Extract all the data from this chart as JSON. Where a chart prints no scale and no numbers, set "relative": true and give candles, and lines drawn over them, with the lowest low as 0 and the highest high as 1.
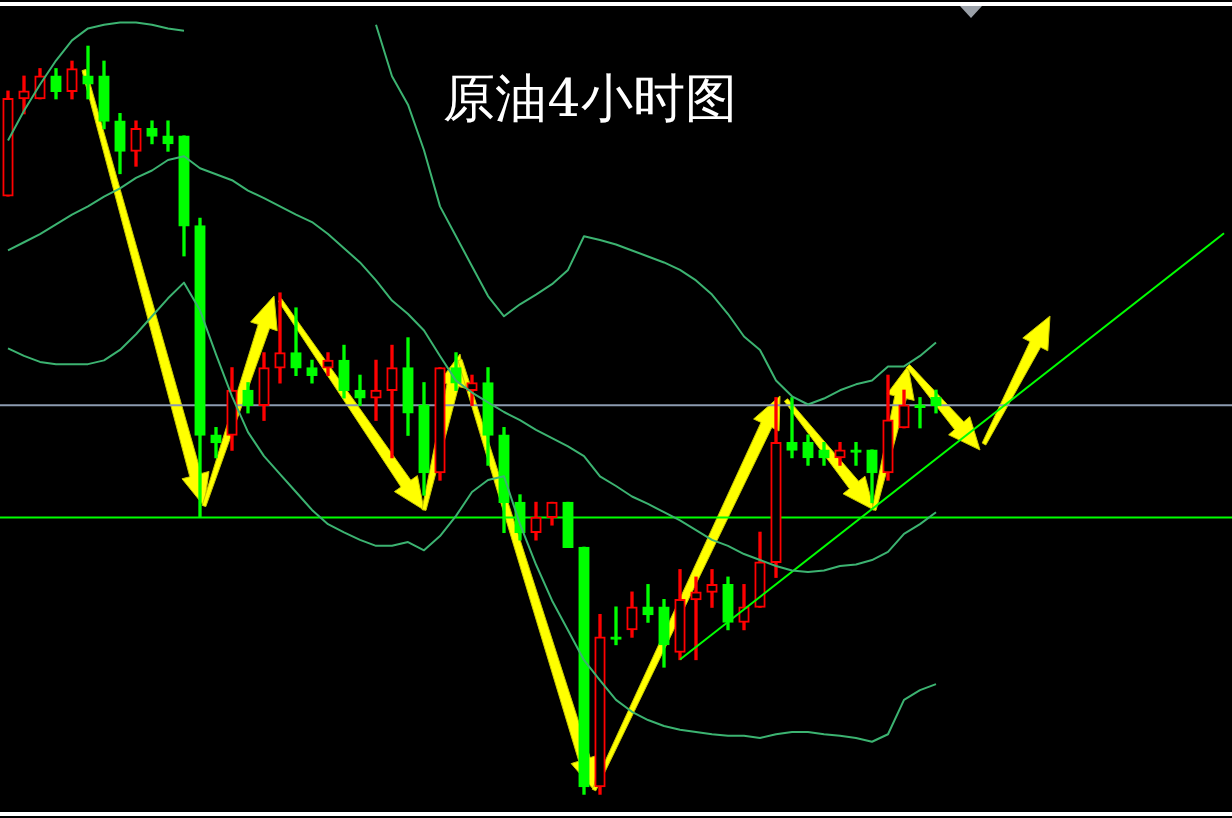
{
  "chart_data": {
    "type": "candlestick",
    "title": "原油4小时图",
    "relative": true,
    "categories": [
      null,
      null,
      null,
      null,
      null,
      null,
      null,
      null,
      null,
      null,
      null,
      null,
      null,
      null,
      null,
      null,
      null,
      null,
      null,
      null,
      null,
      null,
      null,
      null,
      null,
      null,
      null,
      null,
      null,
      null,
      null,
      null,
      null,
      null,
      null,
      null,
      null,
      null,
      null,
      null,
      null,
      null,
      null,
      null,
      null,
      null,
      null,
      null,
      null,
      null,
      null,
      null,
      null,
      null,
      null,
      null,
      null,
      null,
      null,
      null,
      null,
      null,
      null,
      null,
      null,
      null,
      null,
      null,
      null,
      null,
      null,
      null,
      null,
      null,
      null,
      null,
      null
    ],
    "ohlc": [
      [
        0.8,
        0.94,
        0.8,
        0.93
      ],
      [
        0.93,
        0.96,
        0.91,
        0.94
      ],
      [
        0.93,
        0.97,
        0.93,
        0.96
      ],
      [
        0.96,
        0.97,
        0.93,
        0.94
      ],
      [
        0.94,
        0.98,
        0.93,
        0.97
      ],
      [
        0.96,
        1,
        0.93,
        0.95
      ],
      [
        0.96,
        0.98,
        0.89,
        0.9
      ],
      [
        0.9,
        0.91,
        0.83,
        0.86
      ],
      [
        0.86,
        0.9,
        0.84,
        0.89
      ],
      [
        0.89,
        0.9,
        0.87,
        0.88
      ],
      [
        0.88,
        0.9,
        0.86,
        0.87
      ],
      [
        0.88,
        0.88,
        0.72,
        0.76
      ],
      [
        0.76,
        0.77,
        0.37,
        0.48
      ],
      [
        0.48,
        0.49,
        0.45,
        0.47
      ],
      [
        0.48,
        0.57,
        0.46,
        0.54
      ],
      [
        0.54,
        0.55,
        0.51,
        0.52
      ],
      [
        0.52,
        0.59,
        0.5,
        0.57
      ],
      [
        0.57,
        0.67,
        0.55,
        0.59
      ],
      [
        0.59,
        0.65,
        0.56,
        0.57
      ],
      [
        0.57,
        0.58,
        0.55,
        0.56
      ],
      [
        0.57,
        0.59,
        0.56,
        0.58
      ],
      [
        0.58,
        0.6,
        0.53,
        0.54
      ],
      [
        0.54,
        0.56,
        0.52,
        0.53
      ],
      [
        0.53,
        0.58,
        0.5,
        0.54
      ],
      [
        0.54,
        0.6,
        0.45,
        0.57
      ],
      [
        0.57,
        0.61,
        0.48,
        0.51
      ],
      [
        0.52,
        0.55,
        0.4,
        0.43
      ],
      [
        0.43,
        0.57,
        0.42,
        0.57
      ],
      [
        0.57,
        0.59,
        0.54,
        0.55
      ],
      [
        0.54,
        0.56,
        0.52,
        0.55
      ],
      [
        0.55,
        0.57,
        0.44,
        0.48
      ],
      [
        0.48,
        0.49,
        0.35,
        0.39
      ],
      [
        0.39,
        0.4,
        0.34,
        0.35
      ],
      [
        0.35,
        0.39,
        0.34,
        0.37
      ],
      [
        0.37,
        0.39,
        0.36,
        0.39
      ],
      [
        0.39,
        0.39,
        0.33,
        0.33
      ],
      [
        0.33,
        0.33,
        0,
        0.01
      ],
      [
        0.01,
        0.24,
        0,
        0.21
      ],
      [
        0.21,
        0.25,
        0.2,
        0.21
      ],
      [
        0.22,
        0.27,
        0.21,
        0.25
      ],
      [
        0.25,
        0.28,
        0.23,
        0.24
      ],
      [
        0.25,
        0.26,
        0.17,
        0.2
      ],
      [
        0.19,
        0.3,
        0.18,
        0.26
      ],
      [
        0.26,
        0.29,
        0.18,
        0.27
      ],
      [
        0.27,
        0.3,
        0.25,
        0.28
      ],
      [
        0.28,
        0.29,
        0.22,
        0.23
      ],
      [
        0.23,
        0.28,
        0.22,
        0.25
      ],
      [
        0.25,
        0.35,
        0.25,
        0.31
      ],
      [
        0.31,
        0.53,
        0.29,
        0.47
      ],
      [
        0.47,
        0.53,
        0.45,
        0.46
      ],
      [
        0.47,
        0.48,
        0.44,
        0.45
      ],
      [
        0.46,
        0.47,
        0.44,
        0.45
      ],
      [
        0.45,
        0.47,
        0.44,
        0.46
      ],
      [
        0.46,
        0.47,
        0.44,
        0.46
      ],
      [
        0.46,
        0.46,
        0.39,
        0.43
      ],
      [
        0.43,
        0.56,
        0.42,
        0.5
      ],
      [
        0.49,
        0.54,
        0.49,
        0.52
      ],
      [
        0.52,
        0.53,
        0.49,
        0.52
      ],
      [
        0.53,
        0.54,
        0.51,
        0.52
      ],
      null,
      null,
      null,
      null,
      null,
      null,
      null,
      null,
      null,
      null,
      null,
      null,
      null,
      null,
      null,
      null,
      null,
      null
    ],
    "series": [
      {
        "type": "line",
        "color": "#3cb371",
        "values": [
          0.874,
          0.914,
          0.949,
          0.981,
          1.008,
          1.024,
          1.029,
          1.032,
          1.032,
          1.029,
          1.024,
          1.021,
          null,
          null,
          null,
          null,
          null,
          null,
          null,
          null,
          null,
          null,
          null,
          1.029,
          0.96,
          0.922,
          0.861,
          0.786,
          0.746,
          0.706,
          0.666,
          0.639,
          0.655,
          0.668,
          0.682,
          0.701,
          0.746,
          0.741,
          0.735,
          0.727,
          0.719,
          0.711,
          0.701,
          0.687,
          0.668,
          0.642,
          0.612,
          0.594,
          0.553,
          0.532,
          0.521,
          0.529,
          0.54,
          0.548,
          0.553,
          0.572,
          0.572,
          0.586,
          0.604,
          null,
          null,
          null,
          null,
          null,
          null,
          null,
          null,
          null,
          null,
          null,
          null,
          null,
          null,
          null,
          null,
          null,
          null
        ]
      },
      {
        "type": "line",
        "color": "#3cb371",
        "values": [
          0.727,
          0.738,
          0.749,
          0.762,
          0.775,
          0.786,
          0.799,
          0.81,
          0.824,
          0.834,
          0.848,
          0.853,
          0.837,
          0.829,
          0.821,
          0.807,
          0.797,
          0.786,
          0.775,
          0.765,
          0.749,
          0.73,
          0.711,
          0.687,
          0.66,
          0.642,
          0.62,
          0.586,
          0.553,
          0.537,
          0.524,
          0.511,
          0.5,
          0.487,
          0.476,
          0.465,
          0.452,
          0.425,
          0.412,
          0.398,
          0.388,
          0.377,
          0.366,
          0.353,
          0.34,
          0.332,
          0.321,
          0.313,
          0.305,
          0.299,
          0.297,
          0.299,
          0.305,
          0.307,
          0.313,
          0.324,
          0.348,
          0.361,
          0.377,
          null,
          null,
          null,
          null,
          null,
          null,
          null,
          null,
          null,
          null,
          null,
          null,
          null,
          null,
          null,
          null,
          null,
          null
        ]
      },
      {
        "type": "line",
        "color": "#3cb371",
        "values": [
          0.596,
          0.586,
          0.578,
          0.575,
          0.575,
          0.575,
          0.58,
          0.594,
          0.615,
          0.639,
          0.663,
          0.684,
          0.647,
          0.588,
          0.532,
          0.484,
          0.452,
          0.428,
          0.404,
          0.38,
          0.361,
          0.35,
          0.34,
          0.332,
          0.332,
          0.337,
          0.326,
          0.345,
          0.372,
          0.404,
          0.42,
          0.425,
          0.361,
          0.307,
          0.259,
          0.219,
          0.179,
          0.152,
          0.126,
          0.11,
          0.099,
          0.091,
          0.086,
          0.083,
          0.08,
          0.078,
          0.078,
          0.075,
          0.08,
          0.083,
          0.083,
          0.08,
          0.078,
          0.075,
          0.07,
          0.08,
          0.126,
          0.139,
          0.147,
          null,
          null,
          null,
          null,
          null,
          null,
          null,
          null,
          null,
          null,
          null,
          null,
          null,
          null,
          null,
          null,
          null,
          null
        ]
      },
      {
        "type": "line",
        "color": "#00ff00",
        "values": [
          null,
          null,
          null,
          null,
          null,
          null,
          null,
          null,
          null,
          null,
          null,
          null,
          null,
          null,
          null,
          null,
          null,
          null,
          null,
          null,
          null,
          null,
          null,
          null,
          null,
          null,
          null,
          null,
          null,
          null,
          null,
          null,
          null,
          null,
          null,
          null,
          null,
          null,
          null,
          null,
          null,
          null,
          0.18,
          null,
          null,
          null,
          null,
          null,
          null,
          null,
          null,
          null,
          null,
          null,
          null,
          null,
          null,
          null,
          null,
          null,
          null,
          null,
          null,
          null,
          null,
          null,
          null,
          null,
          null,
          null,
          null,
          null,
          null,
          null,
          null,
          null,
          0.75
        ]
      }
    ],
    "ref_lines": [
      {
        "axis": "y",
        "value": 0.52,
        "color": "#8c9bb0"
      },
      {
        "axis": "y",
        "value": 0.37,
        "color": "#00ff00"
      }
    ]
  }
}
